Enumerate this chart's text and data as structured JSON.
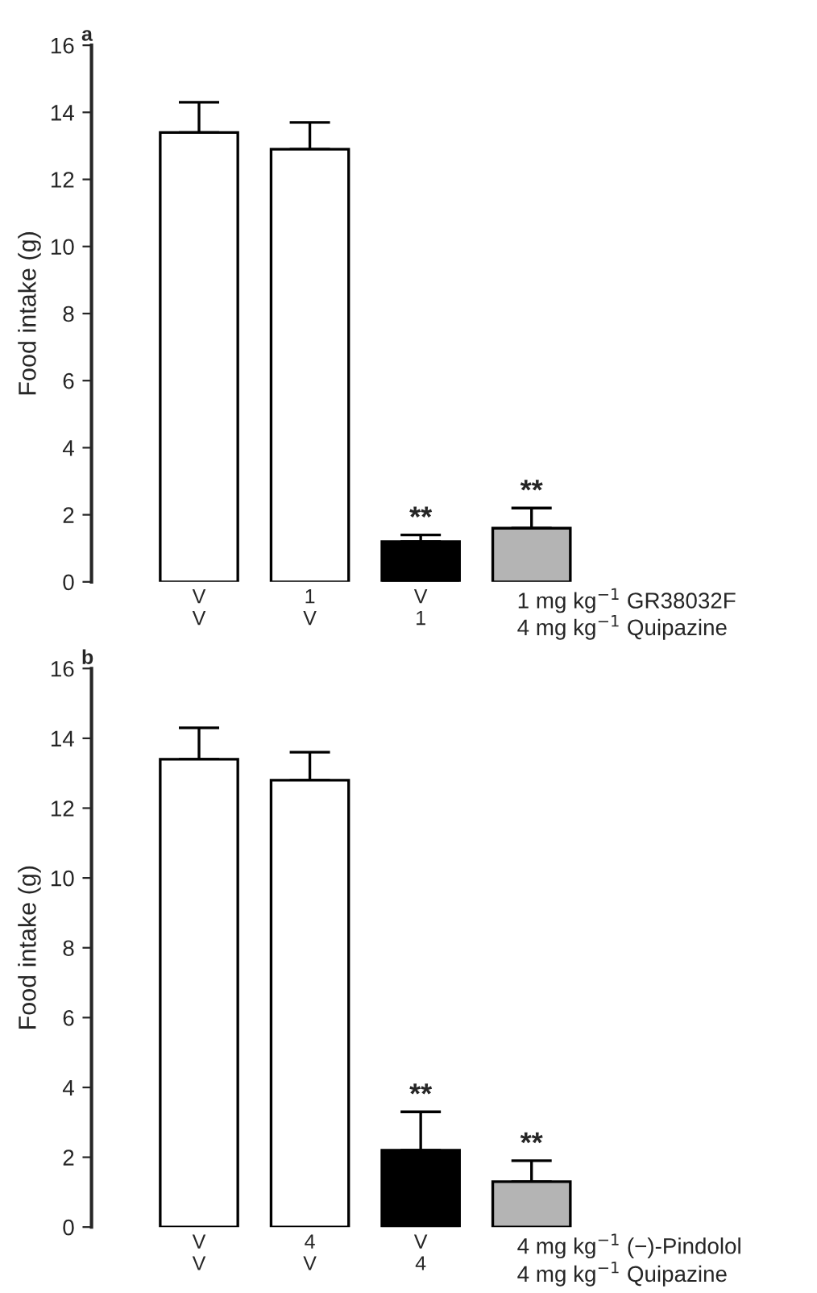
{
  "chart_data": [
    {
      "type": "bar",
      "title": "a",
      "ylabel": "Food intake (g)",
      "categories": [
        "V\nV",
        "1\nV",
        "V\n1",
        null
      ],
      "values": [
        13.4,
        12.9,
        1.2,
        1.6
      ],
      "errors": [
        [
          13.4,
          14.3
        ],
        [
          12.9,
          13.7
        ],
        [
          1.2,
          1.4
        ],
        [
          1.6,
          2.2
        ]
      ],
      "value_labels": [
        null,
        null,
        "**",
        "**"
      ],
      "colors": [
        "#ffffff",
        "#ffffff",
        "#000000",
        "#b4b4b4"
      ],
      "ylim": [
        0,
        16
      ],
      "yticks": [
        0,
        2,
        4,
        6,
        8,
        10,
        12,
        14,
        16
      ],
      "grid": false,
      "legend": false,
      "annotations": [
        "1 mg kg$^{−1}$ GR38032F",
        "4 mg kg$^{−1}$ Quipazine"
      ]
    },
    {
      "type": "bar",
      "title": "b",
      "ylabel": "Food intake (g)",
      "categories": [
        "V\nV",
        "4\nV",
        "V\n4",
        null
      ],
      "values": [
        13.4,
        12.8,
        2.2,
        1.3
      ],
      "errors": [
        [
          13.4,
          14.3
        ],
        [
          12.8,
          13.6
        ],
        [
          2.2,
          3.3
        ],
        [
          1.3,
          1.9
        ]
      ],
      "value_labels": [
        null,
        null,
        "**",
        "**"
      ],
      "colors": [
        "#ffffff",
        "#ffffff",
        "#000000",
        "#b4b4b4"
      ],
      "ylim": [
        0,
        16
      ],
      "yticks": [
        0,
        2,
        4,
        6,
        8,
        10,
        12,
        14,
        16
      ],
      "grid": false,
      "legend": false,
      "annotations": [
        "4 mg kg$^{−1}$ (−)-Pindolol",
        "4 mg kg$^{−1}$ Quipazine"
      ]
    }
  ]
}
